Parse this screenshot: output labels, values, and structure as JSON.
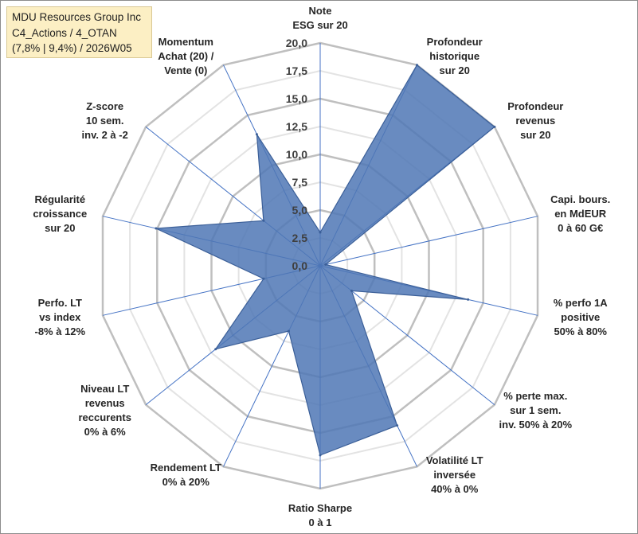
{
  "chart_data": {
    "type": "radar",
    "title_lines": [
      "MDU Resources Group Inc",
      "C4_Actions / 4_OTAN",
      "(7,8% | 9,4%) / 2026W05"
    ],
    "rlim": [
      0,
      20
    ],
    "ticks": [
      "0,0",
      "2,5",
      "5,0",
      "7,5",
      "10,0",
      "12,5",
      "15,0",
      "17,5",
      "20,0"
    ],
    "tick_values": [
      0,
      2.5,
      5,
      7.5,
      10,
      12.5,
      15,
      17.5,
      20
    ],
    "axes": [
      {
        "label": [
          "Note",
          "ESG sur 20"
        ],
        "value": 3.0
      },
      {
        "label": [
          "Profondeur",
          "historique",
          "sur 20"
        ],
        "value": 20.0
      },
      {
        "label": [
          "Profondeur",
          "revenus",
          "sur 20"
        ],
        "value": 20.0
      },
      {
        "label": [
          "Capi. bours.",
          "en MdEUR",
          "0 à 60 G€"
        ],
        "value": 0.5
      },
      {
        "label": [
          "% perfo 1A",
          "positive",
          "50% à 80%"
        ],
        "value": 13.6
      },
      {
        "label": [
          "% perte max.",
          "sur 1 sem.",
          "inv. 50% à 20%"
        ],
        "value": 3.6
      },
      {
        "label": [
          "Volatilité LT",
          "inversée",
          "40% à 0%"
        ],
        "value": 15.9
      },
      {
        "label": [
          "Ratio Sharpe",
          "0 à 1"
        ],
        "value": 17.0
      },
      {
        "label": [
          "Rendement LT",
          "0% à 20%"
        ],
        "value": 6.5
      },
      {
        "label": [
          "Niveau LT",
          "revenus",
          "reccurents",
          "0% à 6%"
        ],
        "value": 12.0
      },
      {
        "label": [
          "Perfo. LT",
          "vs index",
          "-8% à 12%"
        ],
        "value": 5.2
      },
      {
        "label": [
          "Régularité",
          "croissance",
          "sur 20"
        ],
        "value": 15.1
      },
      {
        "label": [
          "Z-score",
          "10 sem.",
          "inv. 2 à -2"
        ],
        "value": 6.5
      },
      {
        "label": [
          "Momentum",
          "Achat (20) /",
          "Vente (0)"
        ],
        "value": 13.1
      }
    ],
    "fill_color": "#4f77b5",
    "edge_color": "#3b5f98",
    "spoke_color": "#4472c4",
    "grid_major_color": "#bfbfbf",
    "grid_minor_color": "#e3e3e3"
  }
}
